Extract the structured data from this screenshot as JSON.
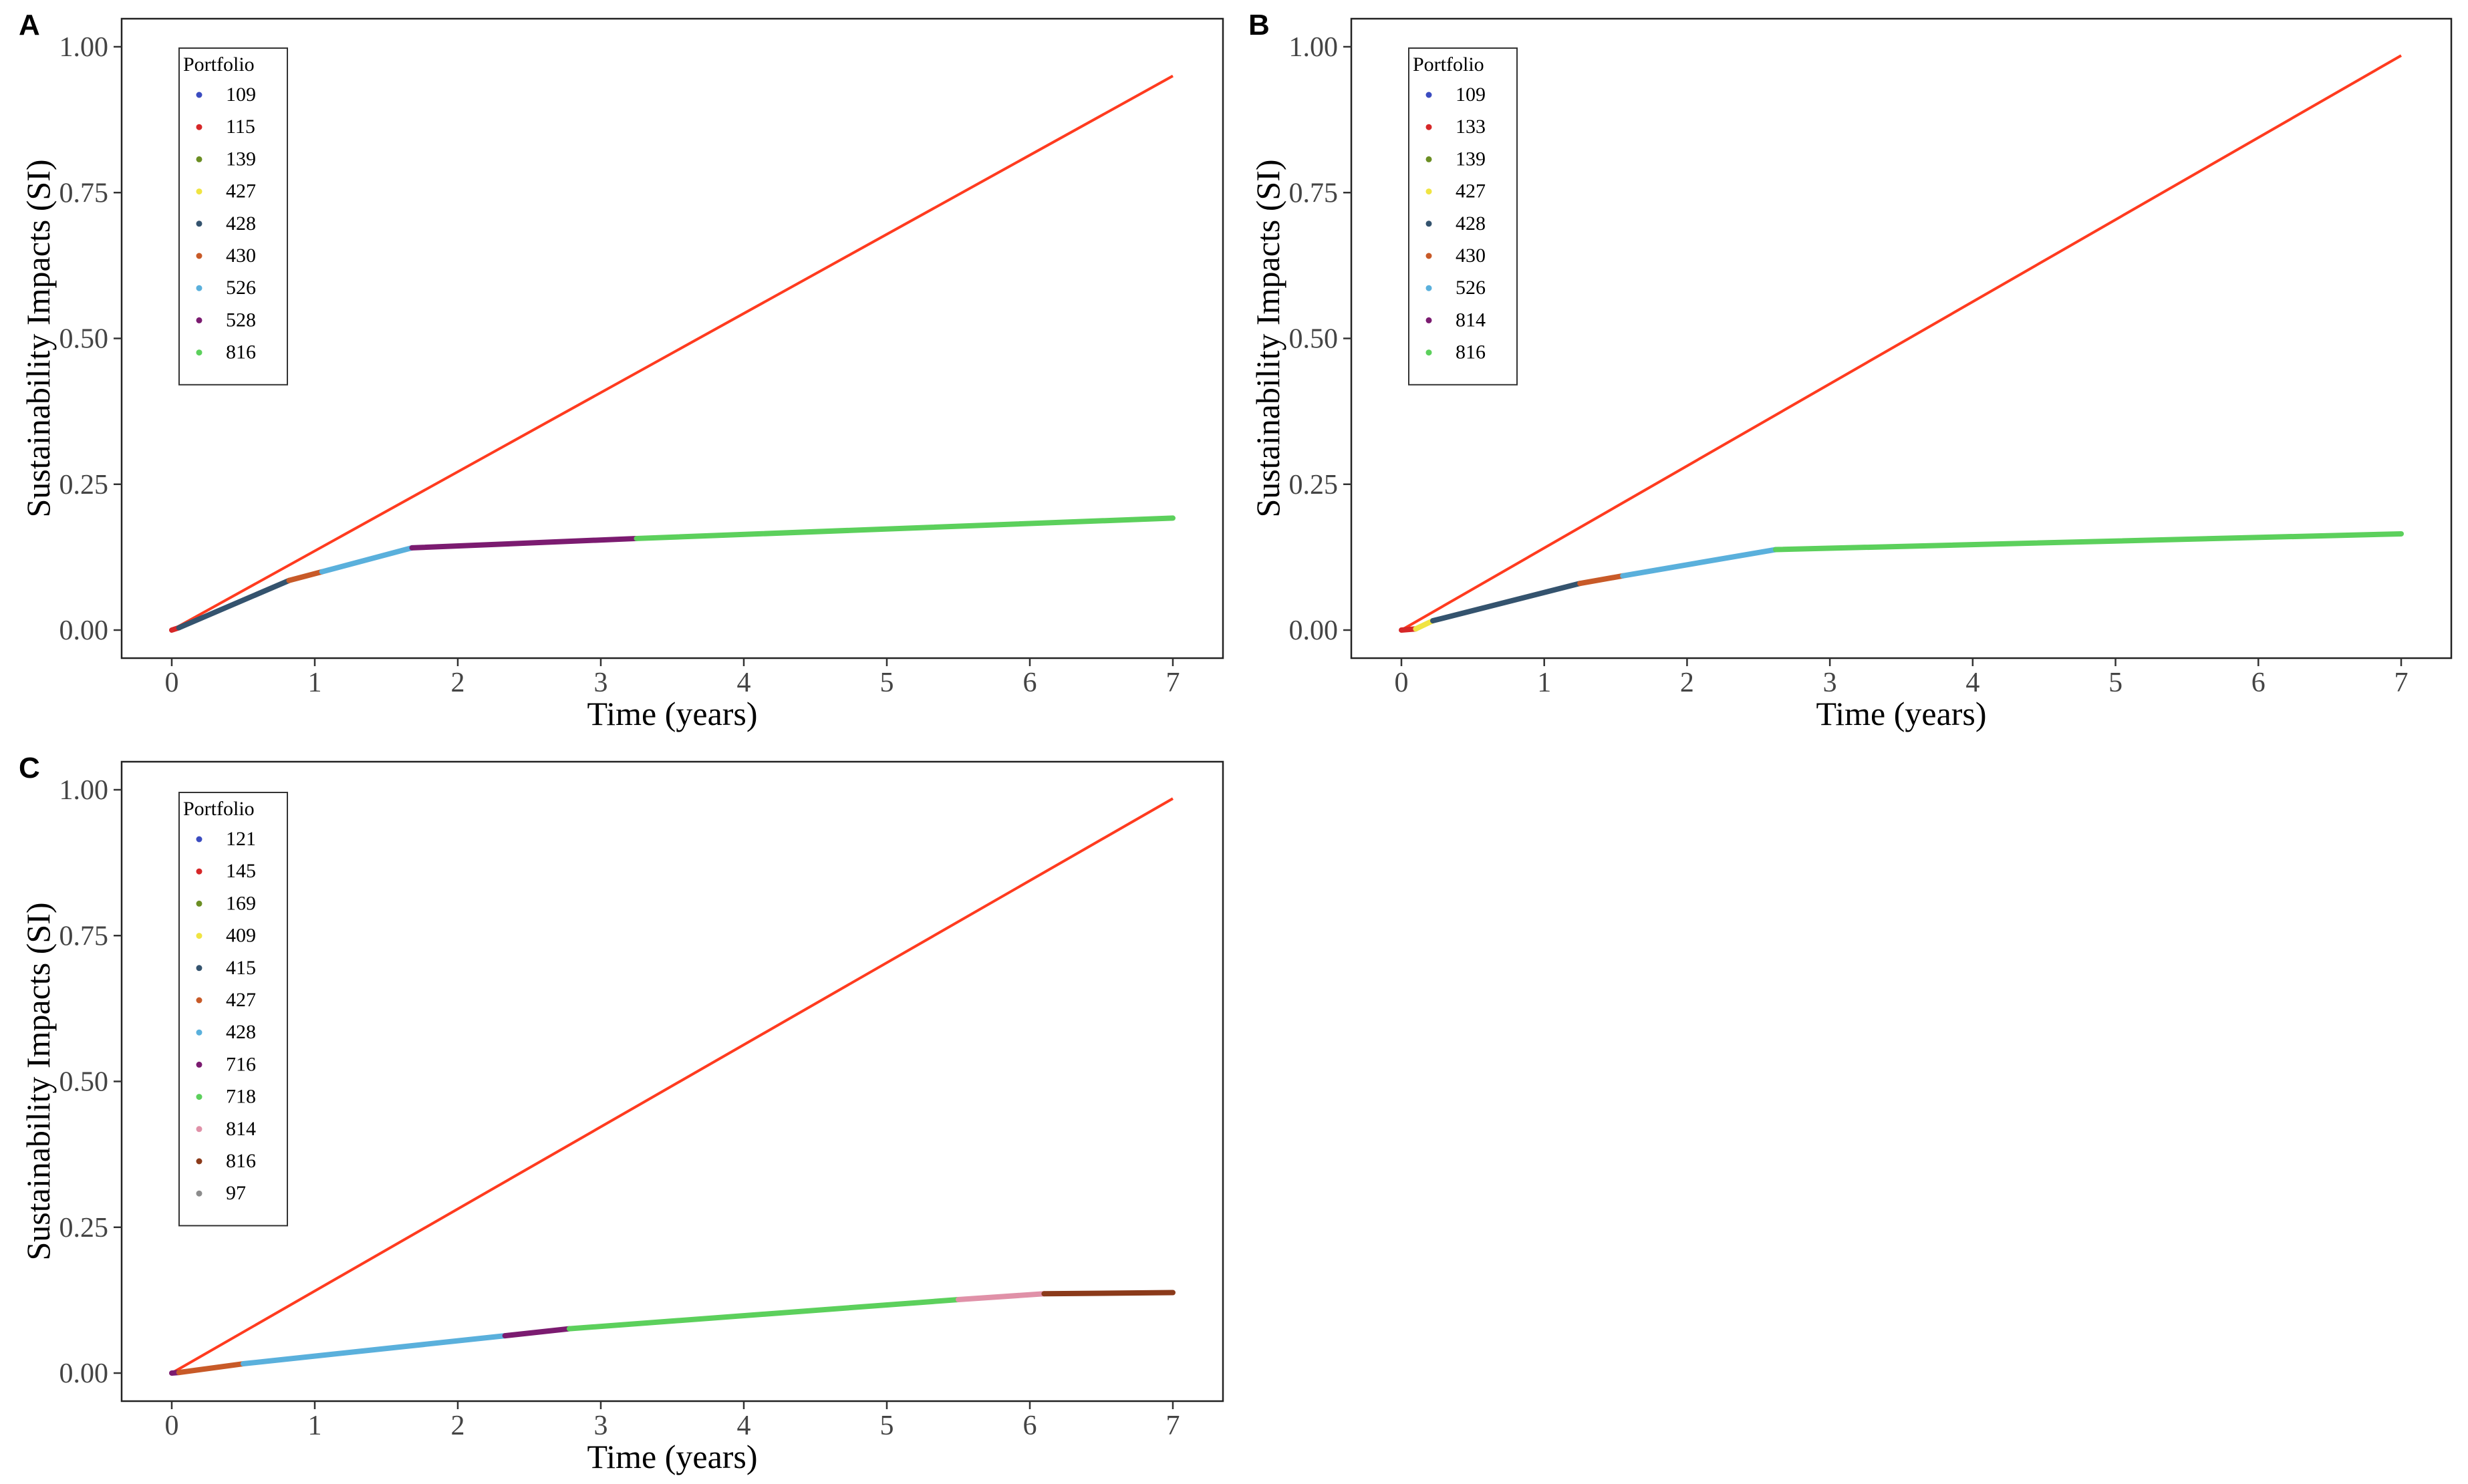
{
  "chart_data": [
    {
      "type": "line",
      "panel": "A",
      "xlabel": "Time (years)",
      "ylabel": "Sustainability Impacts (SI)",
      "xlim": [
        0,
        7
      ],
      "ylim": [
        0,
        1
      ],
      "xticks": [
        "0",
        "1",
        "2",
        "3",
        "4",
        "5",
        "6",
        "7"
      ],
      "yticks": [
        "0.00",
        "0.25",
        "0.50",
        "0.75",
        "1.00"
      ],
      "legend_title": "Portfolio",
      "legend": [
        {
          "label": "109",
          "color": "#3b4cc0"
        },
        {
          "label": "115",
          "color": "#d62728"
        },
        {
          "label": "139",
          "color": "#6b8e23"
        },
        {
          "label": "427",
          "color": "#f0e442"
        },
        {
          "label": "428",
          "color": "#34536e"
        },
        {
          "label": "430",
          "color": "#c85a28"
        },
        {
          "label": "526",
          "color": "#5ab0dc"
        },
        {
          "label": "528",
          "color": "#7b1b70"
        },
        {
          "label": "816",
          "color": "#5cd05c"
        }
      ],
      "reference_line": {
        "color": "#ff3b1f",
        "x": [
          0,
          7
        ],
        "y": [
          0,
          0.95
        ]
      },
      "segments": [
        {
          "label": "115",
          "color": "#d62728",
          "x": [
            0,
            0.05
          ],
          "y": [
            0,
            0.004
          ]
        },
        {
          "label": "428",
          "color": "#34536e",
          "x": [
            0.05,
            0.82
          ],
          "y": [
            0.004,
            0.085
          ]
        },
        {
          "label": "430",
          "color": "#c85a28",
          "x": [
            0.82,
            1.05
          ],
          "y": [
            0.085,
            0.1
          ]
        },
        {
          "label": "526",
          "color": "#5ab0dc",
          "x": [
            1.05,
            1.68
          ],
          "y": [
            0.1,
            0.141
          ]
        },
        {
          "label": "528",
          "color": "#7b1b70",
          "x": [
            1.68,
            3.25
          ],
          "y": [
            0.141,
            0.157
          ]
        },
        {
          "label": "816",
          "color": "#5cd05c",
          "x": [
            3.25,
            7
          ],
          "y": [
            0.157,
            0.192
          ]
        }
      ]
    },
    {
      "type": "line",
      "panel": "B",
      "xlabel": "Time (years)",
      "ylabel": "Sustainability Impacts (SI)",
      "xlim": [
        0,
        7
      ],
      "ylim": [
        0,
        1
      ],
      "xticks": [
        "0",
        "1",
        "2",
        "3",
        "4",
        "5",
        "6",
        "7"
      ],
      "yticks": [
        "0.00",
        "0.25",
        "0.50",
        "0.75",
        "1.00"
      ],
      "legend_title": "Portfolio",
      "legend": [
        {
          "label": "109",
          "color": "#3b4cc0"
        },
        {
          "label": "133",
          "color": "#d62728"
        },
        {
          "label": "139",
          "color": "#6b8e23"
        },
        {
          "label": "427",
          "color": "#f0e442"
        },
        {
          "label": "428",
          "color": "#34536e"
        },
        {
          "label": "430",
          "color": "#c85a28"
        },
        {
          "label": "526",
          "color": "#5ab0dc"
        },
        {
          "label": "814",
          "color": "#7b1b70"
        },
        {
          "label": "816",
          "color": "#5cd05c"
        }
      ],
      "reference_line": {
        "color": "#ff3b1f",
        "x": [
          0,
          7
        ],
        "y": [
          0,
          0.985
        ]
      },
      "segments": [
        {
          "label": "133",
          "color": "#d62728",
          "x": [
            0,
            0.1
          ],
          "y": [
            0,
            0.002
          ]
        },
        {
          "label": "427",
          "color": "#f0e442",
          "x": [
            0.1,
            0.22
          ],
          "y": [
            0.002,
            0.016
          ]
        },
        {
          "label": "428",
          "color": "#34536e",
          "x": [
            0.22,
            1.25
          ],
          "y": [
            0.016,
            0.08
          ]
        },
        {
          "label": "430",
          "color": "#c85a28",
          "x": [
            1.25,
            1.55
          ],
          "y": [
            0.08,
            0.093
          ]
        },
        {
          "label": "526",
          "color": "#5ab0dc",
          "x": [
            1.55,
            2.62
          ],
          "y": [
            0.093,
            0.138
          ]
        },
        {
          "label": "816",
          "color": "#5cd05c",
          "x": [
            2.62,
            7
          ],
          "y": [
            0.138,
            0.165
          ]
        }
      ]
    },
    {
      "type": "line",
      "panel": "C",
      "xlabel": "Time (years)",
      "ylabel": "Sustainability Impacts (SI)",
      "xlim": [
        0,
        7
      ],
      "ylim": [
        0,
        1
      ],
      "xticks": [
        "0",
        "1",
        "2",
        "3",
        "4",
        "5",
        "6",
        "7"
      ],
      "yticks": [
        "0.00",
        "0.25",
        "0.50",
        "0.75",
        "1.00"
      ],
      "legend_title": "Portfolio",
      "legend": [
        {
          "label": "121",
          "color": "#3b4cc0"
        },
        {
          "label": "145",
          "color": "#d62728"
        },
        {
          "label": "169",
          "color": "#6b8e23"
        },
        {
          "label": "409",
          "color": "#f0e442"
        },
        {
          "label": "415",
          "color": "#34536e"
        },
        {
          "label": "427",
          "color": "#c85a28"
        },
        {
          "label": "428",
          "color": "#5ab0dc"
        },
        {
          "label": "716",
          "color": "#7b1b70"
        },
        {
          "label": "718",
          "color": "#5cd05c"
        },
        {
          "label": "814",
          "color": "#e091a8"
        },
        {
          "label": "816",
          "color": "#8b3a1a"
        },
        {
          "label": "97",
          "color": "#8c8c8c"
        }
      ],
      "reference_line": {
        "color": "#ff3b1f",
        "x": [
          0,
          7
        ],
        "y": [
          0,
          0.985
        ]
      },
      "segments": [
        {
          "label": "716",
          "color": "#7b1b70",
          "x": [
            0,
            0.05
          ],
          "y": [
            0,
            0.001
          ]
        },
        {
          "label": "427",
          "color": "#c85a28",
          "x": [
            0.05,
            0.5
          ],
          "y": [
            0.001,
            0.016
          ]
        },
        {
          "label": "428",
          "color": "#5ab0dc",
          "x": [
            0.5,
            2.33
          ],
          "y": [
            0.016,
            0.064
          ]
        },
        {
          "label": "716",
          "color": "#7b1b70",
          "x": [
            2.33,
            2.78
          ],
          "y": [
            0.064,
            0.076
          ]
        },
        {
          "label": "718",
          "color": "#5cd05c",
          "x": [
            2.78,
            5.5
          ],
          "y": [
            0.076,
            0.126
          ]
        },
        {
          "label": "814",
          "color": "#e091a8",
          "x": [
            5.5,
            6.1
          ],
          "y": [
            0.126,
            0.136
          ]
        },
        {
          "label": "816",
          "color": "#8b3a1a",
          "x": [
            6.1,
            7
          ],
          "y": [
            0.136,
            0.138
          ]
        }
      ]
    }
  ]
}
